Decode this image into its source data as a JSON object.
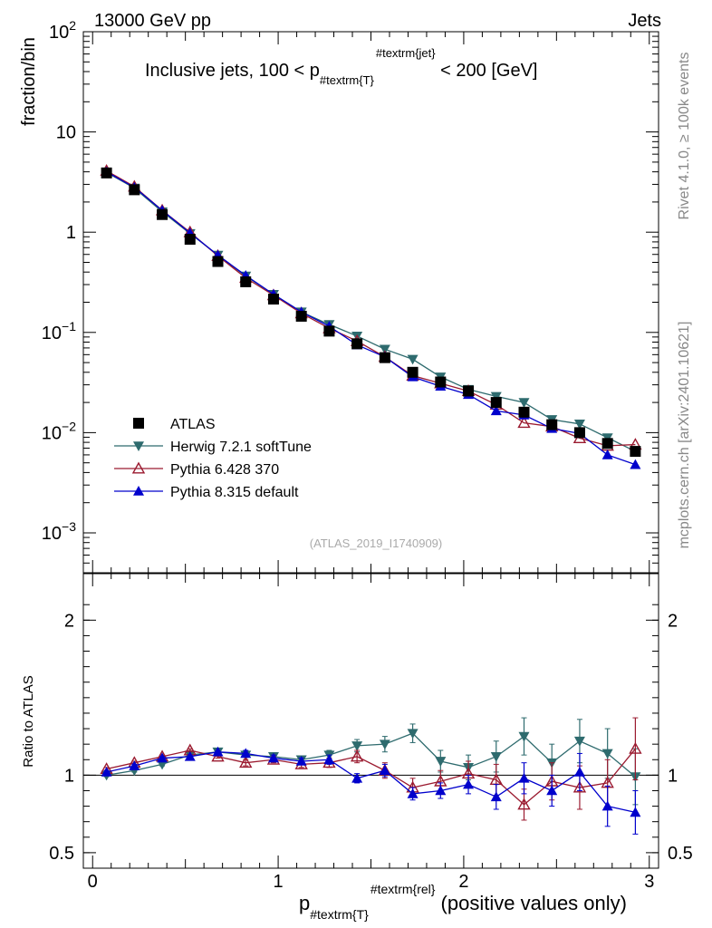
{
  "header": {
    "left": "13000 GeV pp",
    "right": "Jets"
  },
  "side_labels": {
    "rivet": "Rivet 4.1.0, ≥ 100k events",
    "mcplots": "mcplots.cern.ch [arXiv:2401.10621]"
  },
  "chart_data": [
    {
      "type": "line",
      "panel": "main",
      "title": "Inclusive jets, 100 < p_{#textrm{T}}^{#textrm{jet}} < 200 [GeV]",
      "title_parts": {
        "prefix": "Inclusive jets, 100 < p",
        "sub": "#textrm{T}",
        "sup": "#textrm{jet}",
        "suffix": " < 200 [GeV]"
      },
      "ylabel": "fraction/bin",
      "yscale": "log",
      "ylim": [
        0.0004,
        100
      ],
      "xlim": [
        -0.05,
        3.05
      ],
      "yticklabels": [
        {
          "value": 100,
          "base": "10",
          "exp": "2"
        },
        {
          "value": 10,
          "base": "10",
          "exp": ""
        },
        {
          "value": 1,
          "base": "1",
          "exp": ""
        },
        {
          "value": 0.1,
          "base": "10",
          "exp": "−1"
        },
        {
          "value": 0.01,
          "base": "10",
          "exp": "−2"
        },
        {
          "value": 0.001,
          "base": "10",
          "exp": "−3"
        }
      ],
      "watermark": "(ATLAS_2019_I1740909)",
      "x": [
        0.075,
        0.225,
        0.375,
        0.525,
        0.675,
        0.825,
        0.975,
        1.125,
        1.275,
        1.425,
        1.575,
        1.725,
        1.875,
        2.025,
        2.175,
        2.325,
        2.475,
        2.625,
        2.775,
        2.925
      ],
      "series": [
        {
          "name": "ATLAS",
          "color": "#000000",
          "marker": "square",
          "values": [
            3.9,
            2.65,
            1.5,
            0.85,
            0.51,
            0.32,
            0.215,
            0.145,
            0.103,
            0.077,
            0.056,
            0.04,
            0.032,
            0.026,
            0.02,
            0.016,
            0.012,
            0.01,
            0.0078,
            0.0065
          ]
        },
        {
          "name": "Herwig 7.2.1 softTune",
          "color": "#2e6b6e",
          "marker": "triangle-down",
          "values": [
            3.95,
            2.75,
            1.6,
            0.97,
            0.59,
            0.365,
            0.24,
            0.16,
            0.12,
            0.092,
            0.068,
            0.054,
            0.036,
            0.027,
            0.023,
            0.02,
            0.0135,
            0.0122,
            0.0089,
            0.0065
          ]
        },
        {
          "name": "Pythia 6.428 370",
          "color": "#9b1b30",
          "marker": "triangle-up-open",
          "values": [
            4.1,
            2.85,
            1.65,
            1.0,
            0.58,
            0.35,
            0.235,
            0.155,
            0.11,
            0.082,
            0.057,
            0.037,
            0.031,
            0.026,
            0.019,
            0.0125,
            0.0115,
            0.0088,
            0.0074,
            0.0076
          ]
        },
        {
          "name": "Pythia 8.315 default",
          "color": "#0000cc",
          "marker": "triangle-up",
          "values": [
            4.0,
            2.8,
            1.65,
            0.98,
            0.59,
            0.37,
            0.24,
            0.16,
            0.115,
            0.075,
            0.057,
            0.036,
            0.029,
            0.024,
            0.0165,
            0.015,
            0.011,
            0.0098,
            0.006,
            0.0048
          ]
        }
      ]
    },
    {
      "type": "line",
      "panel": "ratio",
      "ylabel": "Ratio to ATLAS",
      "xlabel_parts": {
        "prefix": "p",
        "sub": "#textrm{T}",
        "sup": "#textrm{rel}",
        "suffix": " (positive values only)"
      },
      "ylim": [
        0.4,
        2.3
      ],
      "yticklabels": [
        "2",
        "1",
        "0.5"
      ],
      "yticks": [
        2,
        1,
        0.5
      ],
      "xticklabels": [
        "0",
        "1",
        "2",
        "3"
      ],
      "xticks": [
        0,
        1,
        2,
        3
      ],
      "x": [
        0.075,
        0.225,
        0.375,
        0.525,
        0.675,
        0.825,
        0.975,
        1.125,
        1.275,
        1.425,
        1.575,
        1.725,
        1.875,
        2.025,
        2.175,
        2.325,
        2.475,
        2.625,
        2.775,
        2.925
      ],
      "series": [
        {
          "name": "Herwig 7.2.1 softTune",
          "color": "#2e6b6e",
          "marker": "triangle-down",
          "values": [
            1.0,
            1.03,
            1.07,
            1.13,
            1.15,
            1.13,
            1.12,
            1.1,
            1.13,
            1.19,
            1.2,
            1.27,
            1.09,
            1.05,
            1.12,
            1.25,
            1.08,
            1.22,
            1.14,
            0.99
          ],
          "errors": [
            0.01,
            0.01,
            0.01,
            0.01,
            0.01,
            0.01,
            0.02,
            0.02,
            0.03,
            0.04,
            0.05,
            0.06,
            0.07,
            0.08,
            0.1,
            0.12,
            0.12,
            0.14,
            0.16,
            0.18
          ]
        },
        {
          "name": "Pythia 6.428 370",
          "color": "#9b1b30",
          "marker": "triangle-up-open",
          "values": [
            1.04,
            1.08,
            1.12,
            1.16,
            1.12,
            1.08,
            1.1,
            1.07,
            1.08,
            1.12,
            1.03,
            0.92,
            0.96,
            1.01,
            0.97,
            0.81,
            0.96,
            0.92,
            0.95,
            1.17
          ],
          "errors": [
            0.01,
            0.01,
            0.01,
            0.01,
            0.01,
            0.02,
            0.02,
            0.02,
            0.03,
            0.04,
            0.05,
            0.06,
            0.07,
            0.08,
            0.1,
            0.1,
            0.12,
            0.14,
            0.15,
            0.2
          ]
        },
        {
          "name": "Pythia 8.315 default",
          "color": "#0000cc",
          "marker": "triangle-up",
          "values": [
            1.02,
            1.06,
            1.11,
            1.12,
            1.15,
            1.14,
            1.11,
            1.09,
            1.1,
            0.98,
            1.03,
            0.88,
            0.9,
            0.94,
            0.86,
            0.98,
            0.9,
            1.02,
            0.8,
            0.76
          ],
          "errors": [
            0.01,
            0.01,
            0.01,
            0.01,
            0.01,
            0.02,
            0.02,
            0.02,
            0.03,
            0.03,
            0.04,
            0.04,
            0.05,
            0.06,
            0.08,
            0.1,
            0.1,
            0.12,
            0.13,
            0.14
          ]
        }
      ]
    }
  ]
}
